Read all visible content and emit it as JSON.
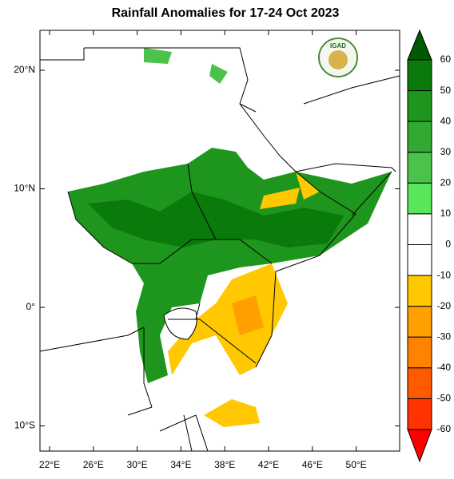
{
  "header": {
    "title": "Rainfall Anomalies for 17-24 Oct 2023"
  },
  "logo": {
    "label": "IGAD"
  },
  "map": {
    "lat_ticks": [
      {
        "value": 20,
        "label": "20°N"
      },
      {
        "value": 10,
        "label": "10°N"
      },
      {
        "value": 0,
        "label": "0°"
      },
      {
        "value": -10,
        "label": "10°S"
      }
    ],
    "lon_ticks": [
      {
        "value": 22,
        "label": "22°E"
      },
      {
        "value": 26,
        "label": "26°E"
      },
      {
        "value": 30,
        "label": "30°E"
      },
      {
        "value": 34,
        "label": "34°E"
      },
      {
        "value": 38,
        "label": "38°E"
      },
      {
        "value": 42,
        "label": "42°E"
      },
      {
        "value": 46,
        "label": "46°E"
      },
      {
        "value": 50,
        "label": "50°E"
      }
    ]
  },
  "colorbar": {
    "levels": [
      60,
      50,
      40,
      30,
      20,
      10,
      0,
      -10,
      -20,
      -30,
      -40,
      -50,
      -60
    ],
    "colors": [
      "#005a00",
      "#0a7a0a",
      "#1e961e",
      "#32aa32",
      "#4bc34b",
      "#5ae65a",
      "#ffffff",
      "#ffffff",
      "#ffc800",
      "#ffa000",
      "#ff8200",
      "#ff5a00",
      "#ff3200",
      "#ff0000"
    ]
  }
}
